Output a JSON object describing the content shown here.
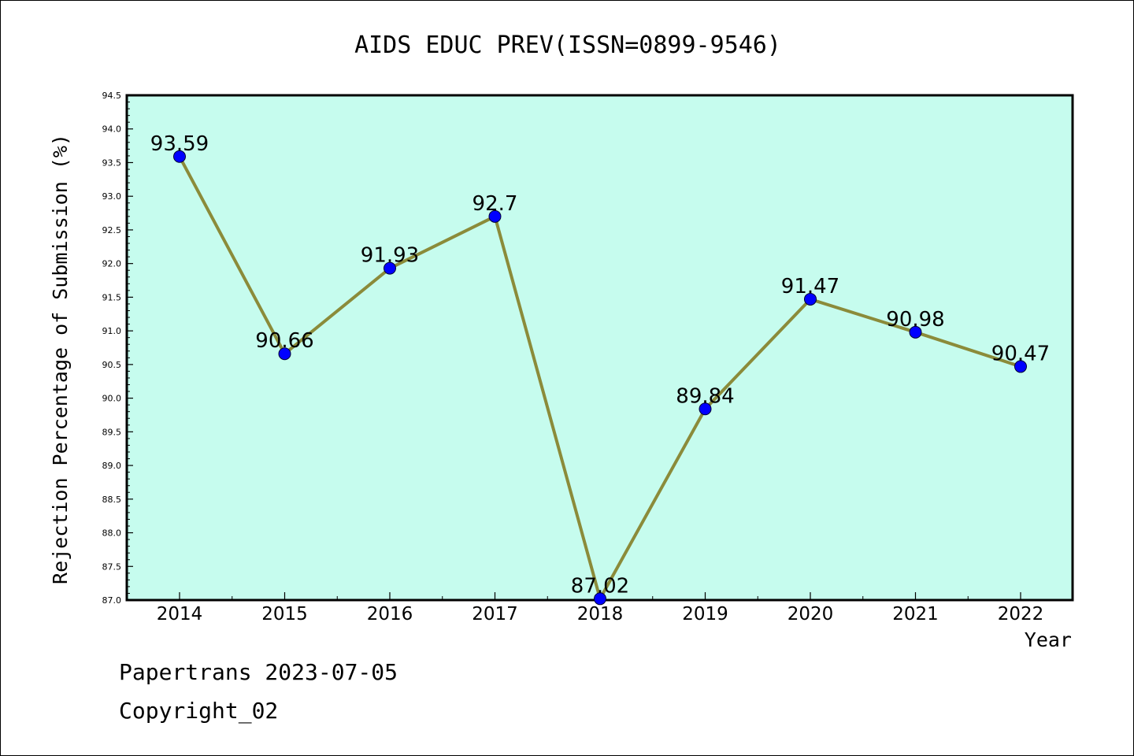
{
  "chart_data": {
    "type": "line",
    "title": "AIDS EDUC PREV(ISSN=0899-9546)",
    "xlabel": "Year",
    "ylabel": "Rejection Percentage of Submission (%)",
    "categories": [
      "2014",
      "2015",
      "2016",
      "2017",
      "2018",
      "2019",
      "2020",
      "2021",
      "2022"
    ],
    "series": [
      {
        "values": [
          93.59,
          90.66,
          91.93,
          92.7,
          87.02,
          89.84,
          91.47,
          90.98,
          90.47
        ],
        "labels": [
          "93.59",
          "90.66",
          "91.93",
          "92.7",
          "87.02",
          "89.84",
          "91.47",
          "90.98",
          "90.47"
        ]
      }
    ],
    "ylim": [
      87.0,
      94.5
    ],
    "yticks": [
      "87.0",
      "87.5",
      "88.0",
      "88.5",
      "89.0",
      "89.5",
      "90.0",
      "90.5",
      "91.0",
      "91.5",
      "92.0",
      "92.5",
      "93.0",
      "93.5",
      "94.0",
      "94.5"
    ],
    "grid": false,
    "colors": {
      "plot_background": "#c6fcee",
      "line": "#8b8b3a",
      "marker": "#0000ff",
      "axes": "#000000"
    }
  },
  "footer": {
    "line1": "Papertrans 2023-07-05",
    "line2": "Copyright_02"
  }
}
